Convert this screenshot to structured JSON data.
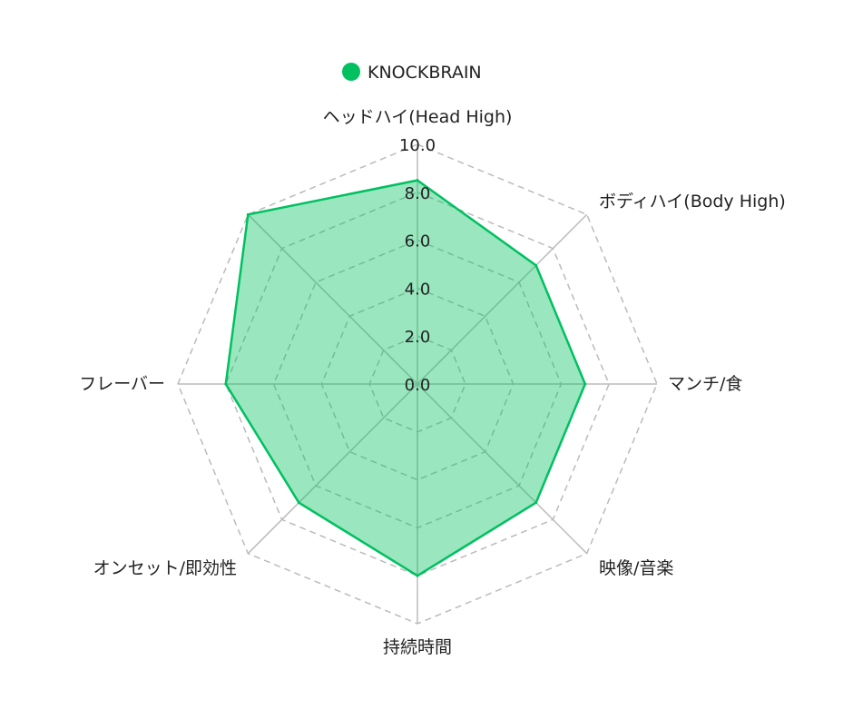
{
  "chart_data": {
    "type": "radar",
    "axes": [
      "ヘッドハイ(Head High)",
      "ボディハイ(Body High)",
      "マンチ/食",
      "映像/音楽",
      "持続時間",
      "オンセット/即効性",
      "フレーバー",
      ""
    ],
    "series": [
      {
        "name": "KNOCKBRAIN",
        "values": [
          8.5,
          7,
          7,
          7,
          8,
          7,
          8,
          10
        ],
        "color": "#00c060",
        "fill": "rgba(0,192,96,0.4)"
      }
    ],
    "rlim": [
      0,
      10
    ],
    "ticks": [
      "0.0",
      "2.0",
      "4.0",
      "6.0",
      "8.0",
      "10.0"
    ],
    "grid": true,
    "legend_position": "top"
  }
}
